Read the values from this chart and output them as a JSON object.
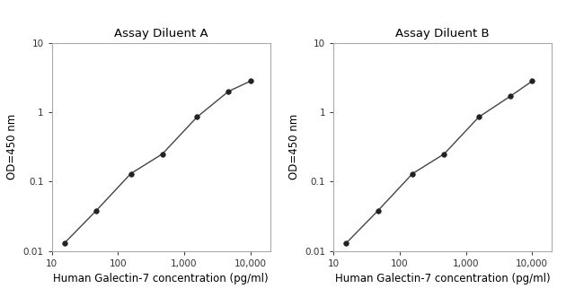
{
  "panels": [
    {
      "title": "Assay Diluent A",
      "x": [
        15.6,
        46.9,
        156,
        469,
        1563,
        4688,
        10000
      ],
      "y": [
        0.013,
        0.038,
        0.13,
        0.25,
        0.85,
        2.0,
        2.8
      ]
    },
    {
      "title": "Assay Diluent B",
      "x": [
        15.6,
        46.9,
        156,
        469,
        1563,
        4688,
        10000
      ],
      "y": [
        0.013,
        0.038,
        0.13,
        0.25,
        0.85,
        1.7,
        2.8
      ]
    }
  ],
  "xlabel": "Human Galectin-7 concentration (pg/ml)",
  "ylabel": "OD=450 nm",
  "xlim": [
    10,
    20000
  ],
  "ylim": [
    0.01,
    10
  ],
  "background_color": "#ffffff",
  "line_color": "#444444",
  "marker_color": "#222222",
  "marker_size": 4,
  "line_width": 1.0,
  "title_fontsize": 9.5,
  "label_fontsize": 8.5,
  "tick_fontsize": 7.5,
  "spine_color": "#aaaaaa"
}
